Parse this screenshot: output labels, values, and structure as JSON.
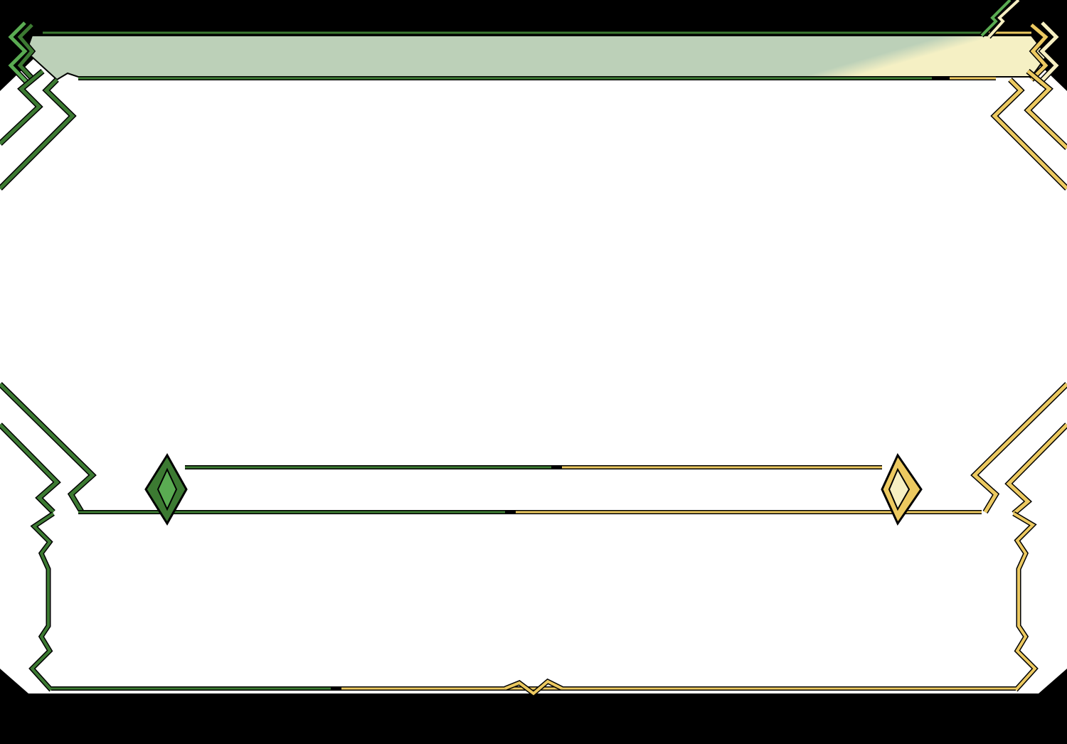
{
  "theme": {
    "background": "#000000",
    "panel_fill": "#ffffff",
    "green": "#3c7a32",
    "green_light": "#5aab52",
    "yellow": "#ecc960",
    "yellow_light": "#f6efc2",
    "header_fill_left": "#bcd0b8",
    "header_fill_right": "#f5f0c4",
    "outline": "#000000"
  },
  "header_bar": {},
  "middle_bar": {},
  "dialog_box": {}
}
